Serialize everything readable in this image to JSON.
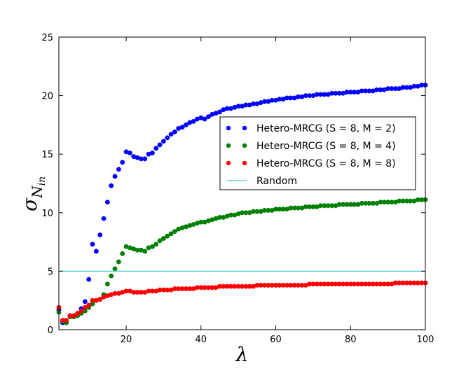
{
  "chart_data": {
    "type": "scatter",
    "title": "",
    "xlabel": "λ",
    "ylabel": {
      "base": "σ",
      "sub": "N",
      "subsub": "in"
    },
    "xlim": [
      2,
      100
    ],
    "ylim": [
      0,
      25
    ],
    "xticks": [
      20,
      40,
      60,
      80,
      100
    ],
    "yticks": [
      0,
      5,
      10,
      15,
      20,
      25
    ],
    "grid": false,
    "legend_position": "center-right",
    "series": [
      {
        "name": "Hetero-MRCG (S = 8, M = 2)",
        "color": "#0000ff",
        "marker": "circle",
        "x": [
          2,
          3,
          4,
          5,
          6,
          7,
          8,
          9,
          10,
          11,
          12,
          13,
          14,
          15,
          16,
          17,
          18,
          19,
          20,
          21,
          22,
          23,
          24,
          25,
          26,
          27,
          28,
          29,
          30,
          31,
          32,
          33,
          34,
          35,
          36,
          37,
          38,
          39,
          40,
          41,
          42,
          43,
          44,
          45,
          46,
          47,
          48,
          49,
          50,
          51,
          52,
          53,
          54,
          55,
          56,
          57,
          58,
          59,
          60,
          61,
          62,
          63,
          64,
          65,
          66,
          67,
          68,
          69,
          70,
          71,
          72,
          73,
          74,
          75,
          76,
          77,
          78,
          79,
          80,
          81,
          82,
          83,
          84,
          85,
          86,
          87,
          88,
          89,
          90,
          91,
          92,
          93,
          94,
          95,
          96,
          97,
          98,
          99,
          100
        ],
        "y": [
          1.7,
          0.6,
          0.6,
          1.2,
          1.1,
          1.4,
          1.8,
          2.4,
          4.3,
          7.3,
          6.7,
          8.1,
          9.5,
          10.9,
          12.3,
          13.1,
          13.7,
          14.3,
          15.2,
          15.1,
          14.8,
          14.7,
          14.6,
          14.6,
          15.0,
          15.1,
          15.5,
          15.8,
          16.1,
          16.4,
          16.7,
          16.9,
          17.2,
          17.3,
          17.5,
          17.7,
          17.8,
          18.0,
          18.1,
          18.0,
          18.2,
          18.4,
          18.5,
          18.6,
          18.8,
          18.9,
          18.9,
          19.0,
          19.1,
          19.1,
          19.2,
          19.2,
          19.3,
          19.3,
          19.4,
          19.5,
          19.5,
          19.6,
          19.6,
          19.7,
          19.7,
          19.8,
          19.8,
          19.8,
          19.9,
          19.9,
          20.0,
          20.0,
          20.0,
          20.1,
          20.1,
          20.1,
          20.1,
          20.2,
          20.2,
          20.2,
          20.2,
          20.3,
          20.3,
          20.3,
          20.3,
          20.4,
          20.4,
          20.4,
          20.4,
          20.5,
          20.5,
          20.5,
          20.6,
          20.6,
          20.6,
          20.6,
          20.7,
          20.7,
          20.7,
          20.8,
          20.8,
          20.9,
          20.9
        ]
      },
      {
        "name": "Hetero-MRCG (S = 8, M = 4)",
        "color": "#008000",
        "marker": "circle",
        "x": [
          2,
          3,
          4,
          5,
          6,
          7,
          8,
          9,
          10,
          11,
          12,
          13,
          14,
          15,
          16,
          17,
          18,
          19,
          20,
          21,
          22,
          23,
          24,
          25,
          26,
          27,
          28,
          29,
          30,
          31,
          32,
          33,
          34,
          35,
          36,
          37,
          38,
          39,
          40,
          41,
          42,
          43,
          44,
          45,
          46,
          47,
          48,
          49,
          50,
          51,
          52,
          53,
          54,
          55,
          56,
          57,
          58,
          59,
          60,
          61,
          62,
          63,
          64,
          65,
          66,
          67,
          68,
          69,
          70,
          71,
          72,
          73,
          74,
          75,
          76,
          77,
          78,
          79,
          80,
          81,
          82,
          83,
          84,
          85,
          86,
          87,
          88,
          89,
          90,
          91,
          92,
          93,
          94,
          95,
          96,
          97,
          98,
          99,
          100
        ],
        "y": [
          1.5,
          0.7,
          0.6,
          1.1,
          1.1,
          1.2,
          1.4,
          1.6,
          1.9,
          2.2,
          2.5,
          2.6,
          3.0,
          3.9,
          4.6,
          5.2,
          5.8,
          6.5,
          7.1,
          7.0,
          6.9,
          6.8,
          6.8,
          6.7,
          7.0,
          7.1,
          7.3,
          7.6,
          7.8,
          8.0,
          8.2,
          8.4,
          8.6,
          8.7,
          8.8,
          8.9,
          9.0,
          9.1,
          9.2,
          9.2,
          9.3,
          9.4,
          9.5,
          9.6,
          9.6,
          9.7,
          9.8,
          9.8,
          9.9,
          10.0,
          10.0,
          10.0,
          10.1,
          10.1,
          10.1,
          10.2,
          10.2,
          10.2,
          10.3,
          10.3,
          10.3,
          10.3,
          10.4,
          10.4,
          10.4,
          10.4,
          10.5,
          10.5,
          10.5,
          10.5,
          10.6,
          10.6,
          10.6,
          10.6,
          10.6,
          10.7,
          10.7,
          10.7,
          10.7,
          10.7,
          10.7,
          10.8,
          10.8,
          10.8,
          10.8,
          10.8,
          10.9,
          10.9,
          10.9,
          10.9,
          10.9,
          11.0,
          11.0,
          11.0,
          11.0,
          11.0,
          11.1,
          11.1,
          11.1
        ]
      },
      {
        "name": "Hetero-MRCG (S = 8, M = 8)",
        "color": "#ff0000",
        "marker": "circle",
        "x": [
          2,
          3,
          4,
          5,
          6,
          7,
          8,
          9,
          10,
          11,
          12,
          13,
          14,
          15,
          16,
          17,
          18,
          19,
          20,
          21,
          22,
          23,
          24,
          25,
          26,
          27,
          28,
          29,
          30,
          31,
          32,
          33,
          34,
          35,
          36,
          37,
          38,
          39,
          40,
          41,
          42,
          43,
          44,
          45,
          46,
          47,
          48,
          49,
          50,
          51,
          52,
          53,
          54,
          55,
          56,
          57,
          58,
          59,
          60,
          61,
          62,
          63,
          64,
          65,
          66,
          67,
          68,
          69,
          70,
          71,
          72,
          73,
          74,
          75,
          76,
          77,
          78,
          79,
          80,
          81,
          82,
          83,
          84,
          85,
          86,
          87,
          88,
          89,
          90,
          91,
          92,
          93,
          94,
          95,
          96,
          97,
          98,
          99,
          100
        ],
        "y": [
          1.9,
          0.8,
          0.8,
          1.2,
          1.2,
          1.4,
          1.6,
          1.9,
          2.1,
          2.5,
          2.5,
          2.6,
          2.8,
          2.9,
          3.0,
          3.1,
          3.1,
          3.2,
          3.3,
          3.3,
          3.2,
          3.2,
          3.2,
          3.2,
          3.3,
          3.3,
          3.3,
          3.4,
          3.4,
          3.4,
          3.4,
          3.5,
          3.5,
          3.5,
          3.5,
          3.5,
          3.5,
          3.6,
          3.6,
          3.6,
          3.6,
          3.6,
          3.6,
          3.7,
          3.7,
          3.7,
          3.7,
          3.7,
          3.7,
          3.7,
          3.7,
          3.7,
          3.7,
          3.8,
          3.8,
          3.8,
          3.8,
          3.8,
          3.8,
          3.8,
          3.8,
          3.8,
          3.8,
          3.8,
          3.8,
          3.8,
          3.8,
          3.9,
          3.9,
          3.9,
          3.9,
          3.9,
          3.9,
          3.9,
          3.9,
          3.9,
          3.9,
          3.9,
          3.9,
          3.9,
          3.9,
          3.9,
          3.9,
          3.9,
          3.9,
          3.9,
          3.9,
          3.9,
          3.9,
          3.9,
          4.0,
          4.0,
          4.0,
          4.0,
          4.0,
          4.0,
          4.0,
          4.0,
          4.0
        ]
      },
      {
        "name": "Random",
        "color": "#40c8c8",
        "marker": "line",
        "x": [
          2,
          100
        ],
        "y": [
          5.0,
          5.0
        ]
      }
    ]
  }
}
